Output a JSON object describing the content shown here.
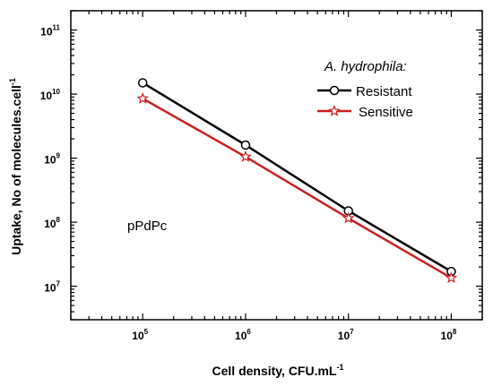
{
  "chart_data": {
    "type": "line",
    "xlabel": "Cell density,  CFU.mL",
    "xlabel_sup": "-1",
    "ylabel": "Uptake,  No of molecules.cell",
    "ylabel_sup": "-1",
    "x_scale": "log",
    "y_scale": "log",
    "xlim": [
      20000,
      200000000
    ],
    "ylim": [
      3000000,
      200000000000
    ],
    "x_ticks": [
      {
        "value": 100000,
        "base": "10",
        "exp": "5"
      },
      {
        "value": 1000000,
        "base": "10",
        "exp": "6"
      },
      {
        "value": 10000000,
        "base": "10",
        "exp": "7"
      },
      {
        "value": 100000000,
        "base": "10",
        "exp": "8"
      }
    ],
    "y_ticks": [
      {
        "value": 10000000,
        "base": "10",
        "exp": "7"
      },
      {
        "value": 100000000,
        "base": "10",
        "exp": "8"
      },
      {
        "value": 1000000000,
        "base": "10",
        "exp": "9"
      },
      {
        "value": 10000000000,
        "base": "10",
        "exp": "10"
      },
      {
        "value": 100000000000,
        "base": "10",
        "exp": "11"
      }
    ],
    "legend_title": "A. hydrophila:",
    "legend_position": "top-right",
    "annotation": "pPdPc",
    "grid": false,
    "series": [
      {
        "name": "Resistant",
        "color": "#000000",
        "marker": "circle",
        "x": [
          100000,
          1000000,
          10000000,
          100000000
        ],
        "y": [
          15000000000,
          1600000000,
          150000000,
          17000000
        ]
      },
      {
        "name": "Sensitive",
        "color": "#cc1f1f",
        "marker": "star",
        "x": [
          100000,
          1000000,
          10000000,
          100000000
        ],
        "y": [
          8500000000,
          1050000000,
          115000000,
          13500000
        ]
      }
    ]
  }
}
